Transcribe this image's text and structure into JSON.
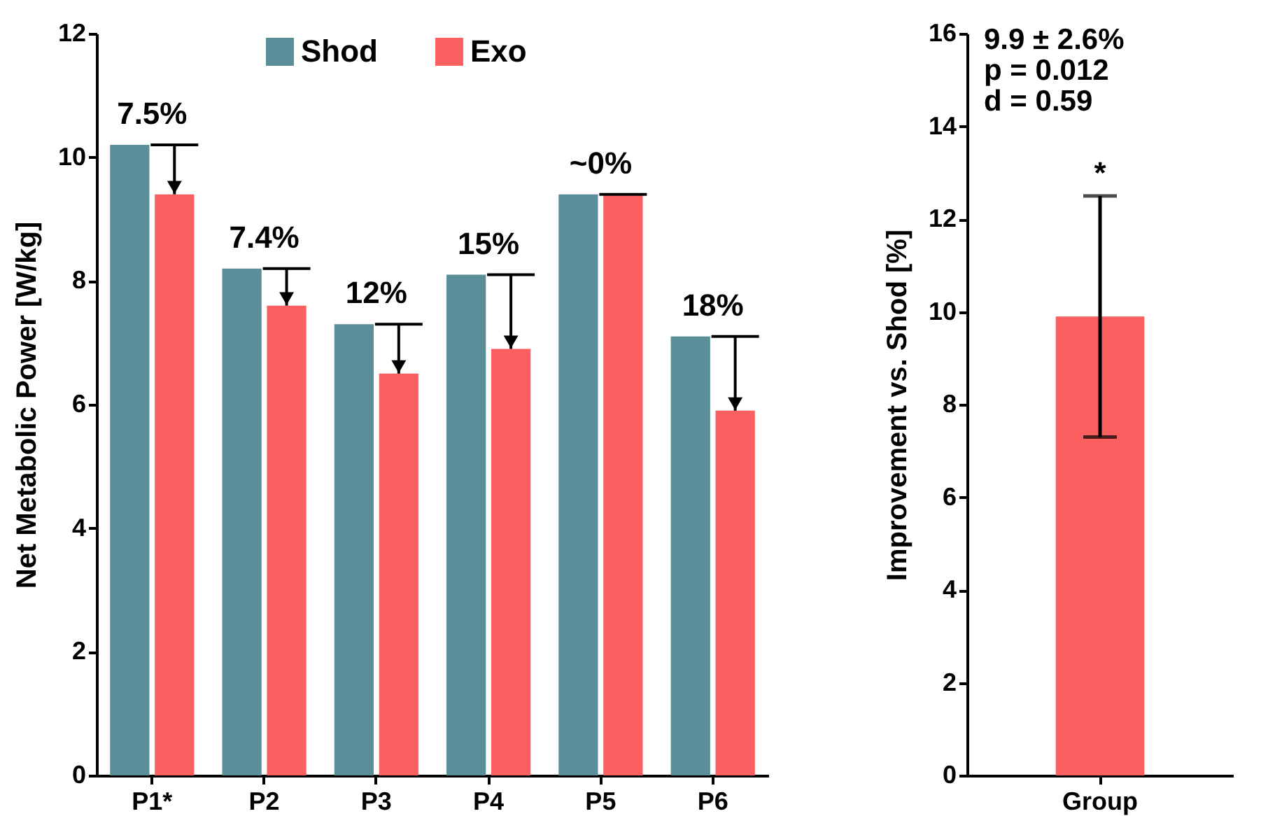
{
  "chart_data": [
    {
      "type": "bar",
      "ylabel": "Net Metabolic Power [W/kg]",
      "categories": [
        "P1*",
        "P2",
        "P3",
        "P4",
        "P5",
        "P6"
      ],
      "series": [
        {
          "name": "Shod",
          "color": "#5a8e99",
          "values": [
            10.2,
            8.2,
            7.3,
            8.1,
            9.4,
            7.1
          ]
        },
        {
          "name": "Exo",
          "color": "#fa6060",
          "values": [
            9.4,
            7.6,
            6.5,
            6.9,
            9.4,
            5.9
          ]
        }
      ],
      "ylim": [
        0,
        12
      ],
      "yticks": [
        0,
        2,
        4,
        6,
        8,
        10,
        12
      ],
      "grid": false,
      "legend": "top",
      "annotations": [
        {
          "text": "7.5%",
          "x": "P1*",
          "y": 10.2
        },
        {
          "text": "7.4%",
          "x": "P2",
          "y": 8.2
        },
        {
          "text": "12%",
          "x": "P3",
          "y": 7.3
        },
        {
          "text": "15%",
          "x": "P4",
          "y": 8.1
        },
        {
          "text": "~0%",
          "x": "P5",
          "y": 9.4
        },
        {
          "text": "18%",
          "x": "P6",
          "y": 7.1
        }
      ]
    },
    {
      "type": "bar",
      "ylabel": "Improvement vs. Shod [%]",
      "categories": [
        "Group"
      ],
      "values": [
        9.9
      ],
      "errors": [
        2.6
      ],
      "colors": [
        "#fa6060"
      ],
      "ylim": [
        0,
        16
      ],
      "yticks": [
        0,
        2,
        4,
        6,
        8,
        10,
        12,
        14,
        16
      ],
      "grid": false,
      "annotations": [
        "9.9 ± 2.6%",
        "p = 0.012",
        "d = 0.59",
        {
          "text": "*",
          "x": "Group",
          "y": 12.5
        }
      ]
    }
  ]
}
